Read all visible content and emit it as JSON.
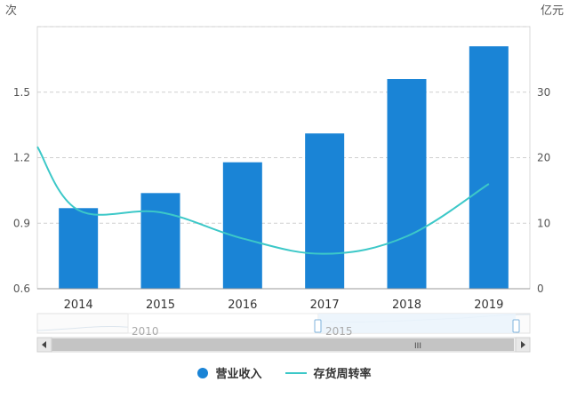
{
  "chart_data": {
    "type": "bar",
    "categories": [
      "2014",
      "2015",
      "2016",
      "2017",
      "2018",
      "2019"
    ],
    "left_axis": {
      "unit": "次",
      "ylim": [
        0.6,
        1.8
      ],
      "ticks": [
        "0.6",
        "0.9",
        "1.2",
        "1.5"
      ]
    },
    "right_axis": {
      "unit": "亿元",
      "ylim": [
        0,
        40
      ],
      "ticks": [
        "0",
        "10",
        "20",
        "30"
      ]
    },
    "series": [
      {
        "name": "营业收入",
        "type": "bar",
        "axis": "right",
        "color": "#1a84d6",
        "values": [
          12.3,
          14.6,
          19.3,
          23.7,
          32.0,
          37.0
        ]
      },
      {
        "name": "存货周转率",
        "type": "line",
        "axis": "left",
        "color": "#3cc8c8",
        "smooth": true,
        "values": [
          0.96,
          0.95,
          0.83,
          0.76,
          0.84,
          1.08
        ],
        "edge_values": {
          "left": 1.25,
          "right": 1.08
        }
      }
    ],
    "grid": true,
    "legend_position": "bottom",
    "zoom_slider": {
      "labels": [
        "2010",
        "2015"
      ],
      "scroll_label": "III"
    }
  }
}
